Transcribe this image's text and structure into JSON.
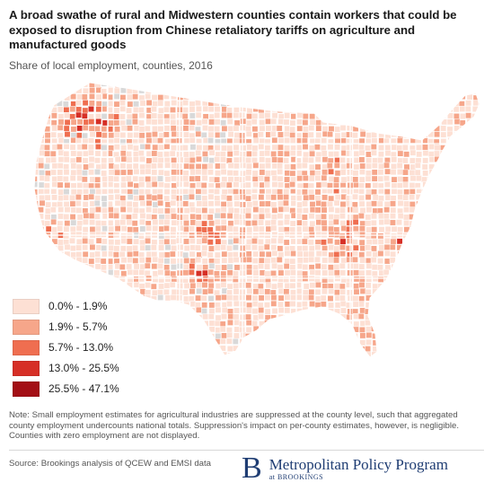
{
  "title": "A broad swathe of rural and Midwestern counties contain workers that could be exposed to disruption from Chinese retaliatory tariffs on agriculture and manufactured goods",
  "subtitle": "Share of local employment, counties, 2016",
  "legend": [
    {
      "label": "0.0% - 1.9%",
      "color": "#fde0d4"
    },
    {
      "label": "1.9% - 5.7%",
      "color": "#f6a68a"
    },
    {
      "label": "5.7% - 13.0%",
      "color": "#ef6e50"
    },
    {
      "label": "13.0% - 25.5%",
      "color": "#d62f26"
    },
    {
      "label": "25.5% - 47.1%",
      "color": "#a30f15"
    }
  ],
  "no_data_color": "#d9d9d9",
  "note": "Note: Small employment estimates for agricultural industries are suppressed at the county level, such that aggregated county employment undercounts national totals. Suppression's impact on per-county estimates, however, is negligible. Counties with zero employment are not displayed.",
  "source": "Source: Brookings analysis of QCEW and EMSI data",
  "brand": {
    "logo_letter": "B",
    "name": "Metropolitan Policy Program",
    "sub": "at BROOKINGS"
  }
}
